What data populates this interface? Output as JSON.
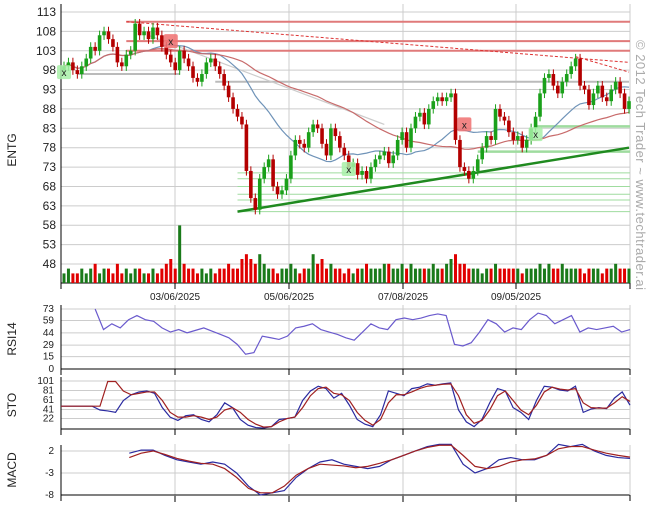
{
  "symbol": "ENTG",
  "watermark": "© 2012 Tech Trader ~ www.techtrader.ai",
  "colors": {
    "up": "#1aa01a",
    "down": "#b30000",
    "volume_up": "#1a7a1a",
    "volume_down": "#e00000",
    "ma_short": "#6f93b8",
    "ma_long": "#c86b6b",
    "resistance": "#e07a7a",
    "support": "#9fdc9f",
    "trend_support": "#1f8a1f",
    "indicator": "#6a5acd",
    "k_line": "#2a2aa0",
    "d_line": "#a02020",
    "grid": "#cccccc"
  },
  "chart_data": [
    {
      "type": "candlestick",
      "title": "ENTG",
      "ylabel": "ENTG",
      "ylim": [
        46,
        114
      ],
      "yticks": [
        "113",
        "108",
        "103",
        "98",
        "93",
        "88",
        "83",
        "78",
        "73",
        "68",
        "63",
        "58",
        "53",
        "48"
      ],
      "xticks": [
        "03/06/2025",
        "05/06/2025",
        "07/08/2025",
        "09/05/2025"
      ],
      "close": [
        99,
        100,
        98,
        97,
        99,
        101,
        104,
        103,
        107,
        108,
        106,
        104,
        100,
        99,
        102,
        103,
        110,
        107,
        108,
        106,
        109,
        107,
        104,
        102,
        100,
        98,
        103,
        101,
        99,
        96,
        95,
        97,
        100,
        101,
        99,
        97,
        94,
        91,
        88,
        86,
        84,
        72,
        65,
        62,
        70,
        73,
        75,
        68,
        66,
        67,
        70,
        76,
        80,
        79,
        78,
        82,
        84,
        83,
        79,
        76,
        83,
        81,
        78,
        76,
        73,
        74,
        71,
        72,
        70,
        73,
        75,
        76,
        77,
        74,
        76,
        80,
        82,
        78,
        83,
        86,
        87,
        84,
        88,
        90,
        91,
        90,
        91,
        92,
        80,
        73,
        72,
        70,
        72,
        75,
        78,
        81,
        80,
        88,
        86,
        85,
        82,
        80,
        81,
        78,
        80,
        83,
        86,
        92,
        96,
        97,
        94,
        92,
        95,
        97,
        99,
        101,
        94,
        93,
        89,
        92,
        94,
        91,
        90,
        93,
        95,
        92,
        88,
        90
      ],
      "volume": [
        2,
        3,
        2,
        2,
        3,
        2,
        3,
        4,
        2,
        3,
        3,
        2,
        4,
        2,
        3,
        2,
        3,
        3,
        2,
        2,
        3,
        2,
        3,
        4,
        5,
        3,
        12,
        4,
        3,
        3,
        2,
        3,
        2,
        3,
        2,
        3,
        3,
        4,
        3,
        3,
        5,
        6,
        5,
        4,
        6,
        4,
        3,
        3,
        2,
        3,
        3,
        4,
        3,
        2,
        3,
        3,
        6,
        4,
        5,
        3,
        4,
        3,
        3,
        2,
        3,
        2,
        3,
        3,
        4,
        3,
        3,
        3,
        4,
        4,
        3,
        3,
        4,
        3,
        4,
        3,
        3,
        3,
        3,
        4,
        3,
        3,
        4,
        5,
        6,
        4,
        4,
        3,
        3,
        3,
        2,
        3,
        3,
        4,
        3,
        3,
        3,
        3,
        3,
        2,
        3,
        3,
        3,
        4,
        3,
        4,
        3,
        3,
        4,
        3,
        3,
        3,
        3,
        2,
        3,
        3,
        3,
        2,
        3,
        3,
        4,
        3,
        3,
        3
      ],
      "moving_averages": [
        {
          "name": "short",
          "period": 20
        },
        {
          "name": "long",
          "period": 50
        }
      ],
      "resistance_levels": [
        110.5,
        105.5,
        103
      ],
      "support_levels": [
        83.5,
        77,
        71.5,
        70,
        68,
        66,
        64.5,
        61.5
      ],
      "gray_levels": [
        {
          "price": 97,
          "from_index": 3,
          "to_index": 26
        },
        {
          "price": 95,
          "from_index": 34,
          "to_index": 127
        }
      ],
      "trendlines": [
        {
          "kind": "support",
          "from": [
            39,
            61.5
          ],
          "to": [
            127,
            78
          ]
        },
        {
          "kind": "resistance-dashed",
          "from": [
            14,
            110.5
          ],
          "to": [
            127,
            100
          ]
        },
        {
          "kind": "resistance-dashed",
          "from": [
            115,
            101.5
          ],
          "to": [
            127,
            97.5
          ]
        },
        {
          "kind": "gray",
          "from": [
            19,
            107
          ],
          "to": [
            72,
            84
          ]
        }
      ],
      "signals": [
        {
          "type": "buy",
          "label": "x",
          "index": 0,
          "price": 97.5
        },
        {
          "type": "sell",
          "label": "x",
          "index": 24,
          "price": 105.5
        },
        {
          "type": "buy",
          "label": "x",
          "index": 64,
          "price": 72.5
        },
        {
          "type": "sell",
          "label": "x",
          "index": 90,
          "price": 84
        },
        {
          "type": "buy",
          "label": "x",
          "index": 106,
          "price": 81.5
        }
      ]
    },
    {
      "type": "line",
      "ylabel": "RSI14",
      "ylim": [
        0,
        73
      ],
      "yticks": [
        "73",
        "59",
        "44",
        "29",
        "15",
        "0"
      ],
      "start_fraction": 0.06,
      "values": [
        73,
        48,
        55,
        50,
        60,
        65,
        60,
        58,
        50,
        45,
        48,
        44,
        47,
        50,
        46,
        42,
        38,
        30,
        18,
        20,
        40,
        38,
        36,
        40,
        50,
        52,
        55,
        48,
        45,
        42,
        38,
        35,
        45,
        55,
        50,
        48,
        60,
        62,
        60,
        62,
        65,
        67,
        65,
        30,
        28,
        32,
        45,
        60,
        55,
        45,
        50,
        48,
        60,
        68,
        65,
        55,
        60,
        65,
        45,
        50,
        48,
        50,
        52,
        45,
        48
      ]
    },
    {
      "type": "line",
      "ylabel": "STO",
      "ylim": [
        0,
        101
      ],
      "yticks": [
        "101",
        "81",
        "61",
        "41",
        "22"
      ],
      "series": [
        {
          "name": "K",
          "values": [
            48,
            48,
            48,
            48,
            48,
            40,
            38,
            35,
            60,
            72,
            78,
            80,
            75,
            45,
            25,
            18,
            28,
            30,
            20,
            15,
            30,
            55,
            45,
            20,
            8,
            3,
            2,
            5,
            20,
            22,
            25,
            60,
            80,
            90,
            85,
            65,
            75,
            50,
            20,
            10,
            5,
            30,
            80,
            75,
            70,
            85,
            88,
            95,
            92,
            95,
            97,
            40,
            15,
            5,
            20,
            55,
            85,
            80,
            45,
            35,
            20,
            60,
            90,
            88,
            82,
            80,
            90,
            35,
            42,
            45,
            43,
            65,
            78,
            50
          ]
        },
        {
          "name": "D",
          "values": [
            48,
            48,
            48,
            48,
            48,
            48,
            100,
            100,
            80,
            72,
            75,
            78,
            78,
            60,
            35,
            25,
            25,
            28,
            25,
            20,
            25,
            40,
            45,
            35,
            20,
            10,
            4,
            5,
            15,
            22,
            25,
            45,
            70,
            85,
            88,
            75,
            72,
            60,
            35,
            18,
            8,
            20,
            55,
            72,
            72,
            78,
            85,
            90,
            92,
            94,
            95,
            70,
            30,
            12,
            18,
            40,
            70,
            80,
            60,
            40,
            30,
            50,
            78,
            88,
            84,
            82,
            85,
            55,
            45,
            44,
            44,
            55,
            68,
            58
          ]
        }
      ]
    },
    {
      "type": "line",
      "ylabel": "MACD",
      "ylim": [
        -8,
        3.8
      ],
      "yticks": [
        "2",
        "-3",
        "-8"
      ],
      "start_fraction": 0.12,
      "series": [
        {
          "name": "MACD",
          "values": [
            1.5,
            2.2,
            2.2,
            1,
            0,
            -0.5,
            -1,
            -0.5,
            -1,
            -3,
            -6,
            -8,
            -7.5,
            -7,
            -4,
            -2,
            -0.5,
            0,
            -1,
            -1.5,
            -2,
            -1.5,
            0,
            1,
            2,
            3,
            3.5,
            3.5,
            -1,
            -3,
            -2,
            0,
            0.5,
            0,
            0,
            1,
            3.5,
            3,
            3.5,
            2,
            1,
            0.5,
            0.3
          ]
        },
        {
          "name": "Signal",
          "values": [
            0.5,
            1.5,
            2,
            1.2,
            0.3,
            -0.3,
            -0.8,
            -1,
            -2,
            -4,
            -6.5,
            -7.5,
            -7.5,
            -6,
            -3.5,
            -2,
            -1,
            -1.2,
            -1.4,
            -1.8,
            -1.5,
            -0.8,
            0,
            1,
            2,
            2.8,
            3.3,
            3.3,
            1,
            -1.5,
            -2,
            -1.5,
            -0.5,
            0,
            0.2,
            1,
            2.5,
            3,
            3,
            2.2,
            1.5,
            1,
            0.6
          ]
        }
      ]
    }
  ]
}
